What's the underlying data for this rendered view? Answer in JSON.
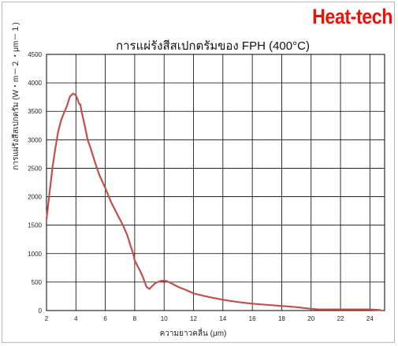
{
  "brand": {
    "logo_text": "Heat-tech",
    "color": "#e8140c"
  },
  "chart_data": {
    "type": "line",
    "title": "การแผ่รังสีสเปกตรัมของ FPH (400°C)",
    "xlabel": "ความยาวคลื่น (μm)",
    "ylabel": "การแผ่รังสีสเปกตรัม (W・m－２・μm－１)",
    "xlim": [
      2,
      25
    ],
    "ylim": [
      0,
      4500
    ],
    "xticks": [
      2,
      4,
      6,
      8,
      10,
      12,
      14,
      16,
      18,
      20,
      22,
      24
    ],
    "yticks": [
      0,
      500,
      1000,
      1500,
      2000,
      2500,
      3000,
      3500,
      4000,
      4500
    ],
    "grid": true,
    "line_color": "#c0504d",
    "series": [
      {
        "x": [
          2.0,
          2.2,
          2.4,
          2.6,
          2.8,
          3.0,
          3.2,
          3.4,
          3.6,
          3.8,
          3.9,
          4.0,
          4.1,
          4.2,
          4.3,
          4.4,
          4.6,
          4.8,
          5.0,
          5.3,
          5.6,
          6.0,
          6.4,
          6.8,
          7.2,
          7.5,
          7.7,
          7.9,
          8.0,
          8.2,
          8.4,
          8.6,
          8.8,
          9.0,
          9.2,
          9.4,
          9.6,
          9.8,
          10.0,
          10.2,
          10.4,
          10.7,
          11.0,
          11.5,
          12.0,
          13.0,
          14.0,
          15.0,
          16.0,
          17.0,
          18.0,
          19.0,
          19.5,
          20.0,
          20.5,
          21.0,
          22.0,
          23.0,
          24.0,
          24.7
        ],
        "y": [
          1600,
          2050,
          2500,
          2850,
          3150,
          3350,
          3480,
          3600,
          3760,
          3810,
          3800,
          3780,
          3720,
          3640,
          3620,
          3480,
          3250,
          3000,
          2850,
          2600,
          2380,
          2150,
          1900,
          1700,
          1500,
          1320,
          1150,
          1000,
          880,
          780,
          680,
          560,
          420,
          380,
          430,
          480,
          505,
          520,
          525,
          515,
          490,
          450,
          410,
          360,
          300,
          240,
          190,
          150,
          120,
          100,
          80,
          60,
          45,
          30,
          20,
          20,
          20,
          20,
          20,
          10
        ]
      }
    ]
  }
}
